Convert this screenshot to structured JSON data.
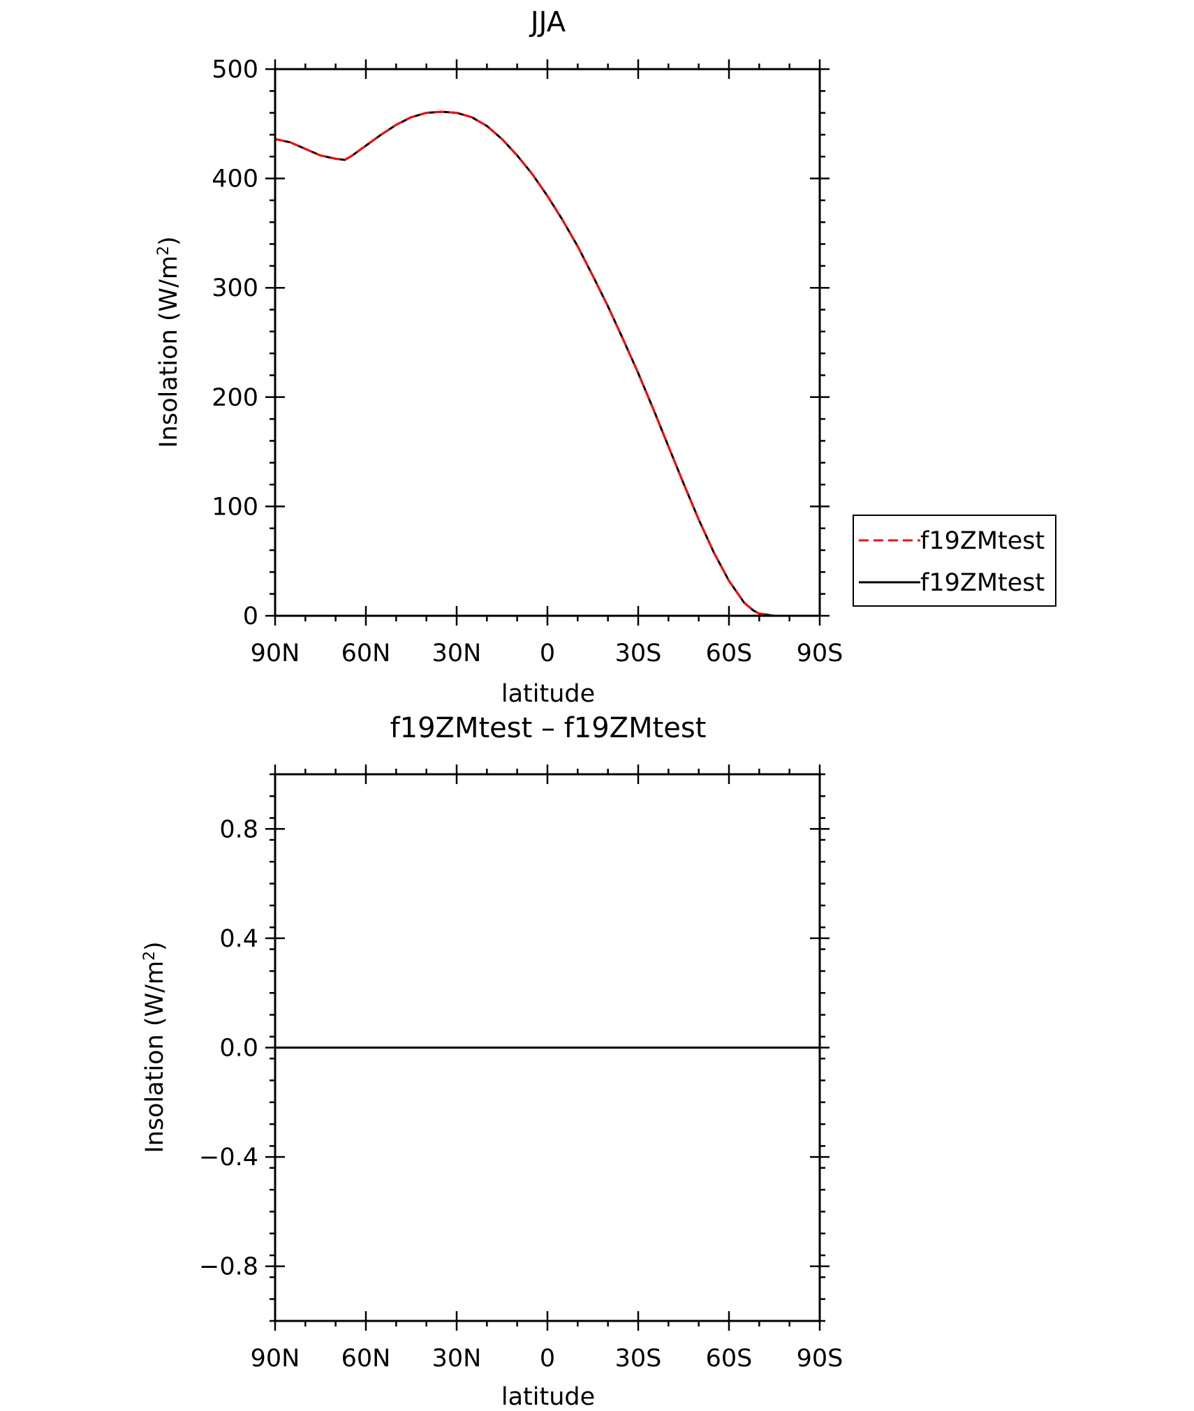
{
  "chart_data": [
    {
      "type": "line",
      "title": "JJA",
      "xlabel": "latitude",
      "ylabel": "Insolation  (W/m",
      "ylabel_sup": "2",
      "ylabel_close": ")",
      "xlim": [
        90,
        -90
      ],
      "ylim": [
        0,
        500
      ],
      "xticks": [
        90,
        60,
        30,
        0,
        -30,
        -60,
        -90
      ],
      "xtick_labels": [
        "90N",
        "60N",
        "30N",
        "0",
        "30S",
        "60S",
        "90S"
      ],
      "yticks": [
        0,
        100,
        200,
        300,
        400,
        500
      ],
      "ytick_labels": [
        "0",
        "100",
        "200",
        "300",
        "400",
        "500"
      ],
      "legend": {
        "placement": "outside-right",
        "entries": [
          "f19ZMtest",
          "f19ZMtest"
        ]
      },
      "series": [
        {
          "name": "f19ZMtest",
          "color": "#ff0000",
          "style": "dashed",
          "x": [
            90,
            85,
            80,
            75,
            70,
            67,
            65,
            60,
            55,
            50,
            45,
            40,
            35,
            30,
            25,
            20,
            15,
            10,
            5,
            0,
            -5,
            -10,
            -15,
            -20,
            -25,
            -30,
            -35,
            -40,
            -45,
            -50,
            -55,
            -60,
            -65,
            -68,
            -70,
            -75,
            -80,
            -85,
            -90
          ],
          "y": [
            436,
            433,
            427,
            421,
            418,
            417,
            420,
            430,
            440,
            449,
            456,
            460,
            461,
            460,
            456,
            448,
            436,
            421,
            404,
            384,
            362,
            338,
            311,
            283,
            253,
            222,
            189,
            155,
            121,
            88,
            58,
            32,
            12,
            5,
            2,
            0,
            0,
            0,
            0
          ]
        },
        {
          "name": "f19ZMtest",
          "color": "#000000",
          "style": "solid",
          "x": [
            90,
            85,
            80,
            75,
            70,
            67,
            65,
            60,
            55,
            50,
            45,
            40,
            35,
            30,
            25,
            20,
            15,
            10,
            5,
            0,
            -5,
            -10,
            -15,
            -20,
            -25,
            -30,
            -35,
            -40,
            -45,
            -50,
            -55,
            -60,
            -65,
            -68,
            -70,
            -75,
            -80,
            -85,
            -90
          ],
          "y": [
            436,
            433,
            427,
            421,
            418,
            417,
            420,
            430,
            440,
            449,
            456,
            460,
            461,
            460,
            456,
            448,
            436,
            421,
            404,
            384,
            362,
            338,
            311,
            283,
            253,
            222,
            189,
            155,
            121,
            88,
            58,
            32,
            12,
            5,
            2,
            0,
            0,
            0,
            0
          ]
        }
      ]
    },
    {
      "type": "line",
      "title": "f19ZMtest – f19ZMtest",
      "xlabel": "latitude",
      "ylabel": "Insolation  (W/m",
      "ylabel_sup": "2",
      "ylabel_close": ")",
      "xlim": [
        90,
        -90
      ],
      "ylim": [
        -1,
        1
      ],
      "xticks": [
        90,
        60,
        30,
        0,
        -30,
        -60,
        -90
      ],
      "xtick_labels": [
        "90N",
        "60N",
        "30N",
        "0",
        "30S",
        "60S",
        "90S"
      ],
      "yticks": [
        0.8,
        0.4,
        0.0,
        -0.4,
        -0.8
      ],
      "ytick_labels": [
        "0.8",
        "0.4",
        "0.0",
        "−0.4",
        "−0.8"
      ],
      "series": [
        {
          "color": "#000000",
          "style": "solid",
          "x": [
            90,
            -90
          ],
          "y": [
            0,
            0
          ]
        }
      ]
    }
  ]
}
